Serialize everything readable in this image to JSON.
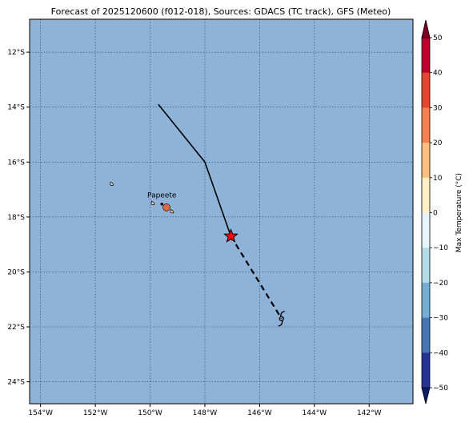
{
  "title": "Forecast of 2025120600 (f012-018), Sources: GDACS (TC track), GFS (Meteo)",
  "map": {
    "lon_range": [
      -154.4,
      -140.4
    ],
    "lat_range": [
      -24.8,
      -10.8
    ],
    "ocean_color": "#8fb3d8",
    "grid_style": "dotted",
    "lat_ticks": [
      {
        "value": -12,
        "label": "12°S"
      },
      {
        "value": -14,
        "label": "14°S"
      },
      {
        "value": -16,
        "label": "16°S"
      },
      {
        "value": -18,
        "label": "18°S"
      },
      {
        "value": -20,
        "label": "20°S"
      },
      {
        "value": -22,
        "label": "22°S"
      },
      {
        "value": -24,
        "label": "24°S"
      }
    ],
    "lon_ticks": [
      {
        "value": -154,
        "label": "154°W"
      },
      {
        "value": -152,
        "label": "152°W"
      },
      {
        "value": -150,
        "label": "150°W"
      },
      {
        "value": -148,
        "label": "148°W"
      },
      {
        "value": -146,
        "label": "146°W"
      },
      {
        "value": -144,
        "label": "144°W"
      },
      {
        "value": -142,
        "label": "142°W"
      }
    ],
    "city": {
      "name": "Papeete",
      "lon": -149.57,
      "lat": -17.53
    },
    "track_past": [
      [
        -149.7,
        -13.9
      ],
      [
        -148.0,
        -16.0
      ],
      [
        -147.05,
        -18.7
      ]
    ],
    "track_forecast": [
      [
        -147.05,
        -18.7
      ],
      [
        -145.2,
        -21.7
      ]
    ],
    "current_position": {
      "lon": -147.05,
      "lat": -18.7,
      "color": "#ff0000",
      "marker": "star"
    },
    "forecast_position": {
      "lon": -145.2,
      "lat": -21.7,
      "marker": "cyclone-symbol"
    },
    "islands": [
      {
        "name": "",
        "lon": -151.4,
        "lat": -16.8
      },
      {
        "name": "",
        "lon": -149.9,
        "lat": -17.5
      },
      {
        "name": "",
        "lon": -149.4,
        "lat": -17.65
      },
      {
        "name": "",
        "lon": -149.2,
        "lat": -17.8
      }
    ]
  },
  "colorbar": {
    "label": "Max Temperature (°C)",
    "ticks": [
      "50",
      "40",
      "30",
      "20",
      "10",
      "0",
      "−10",
      "−20",
      "−30",
      "−40",
      "−50"
    ],
    "colors": [
      "#800026",
      "#c0002c",
      "#e2462f",
      "#f3804f",
      "#fcbe80",
      "#fff0c4",
      "#e6f5fb",
      "#b4dbea",
      "#76aed3",
      "#4575b4",
      "#253494",
      "#1a237e"
    ],
    "extend_top_color": "#800026",
    "extend_bottom_color": "#0d1a66"
  }
}
